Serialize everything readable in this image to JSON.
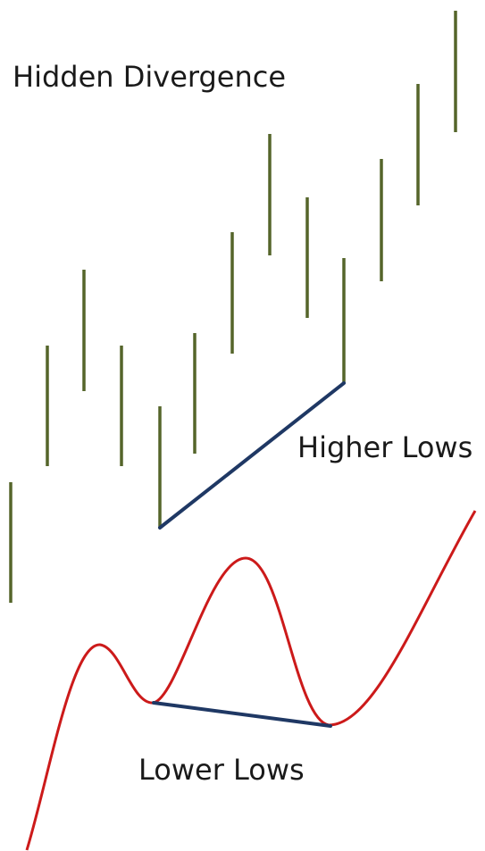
{
  "title": "Hidden Divergence",
  "annotations": {
    "price": "Higher Lows",
    "indicator": "Lower Lows"
  },
  "colors": {
    "price_bars": "#55652a",
    "trendline": "#1f3864",
    "oscillator": "#cc1a1a",
    "background": "#ffffff",
    "text": "#1a1a1a"
  },
  "diagram_data": {
    "price_panel": {
      "bars_shown": 13,
      "pattern": "higher lows",
      "trendline_connects": "lows of bar 5 and bar 10"
    },
    "indicator_panel": {
      "pattern": "lower lows",
      "trendline_connects": "two oscillator troughs"
    }
  }
}
